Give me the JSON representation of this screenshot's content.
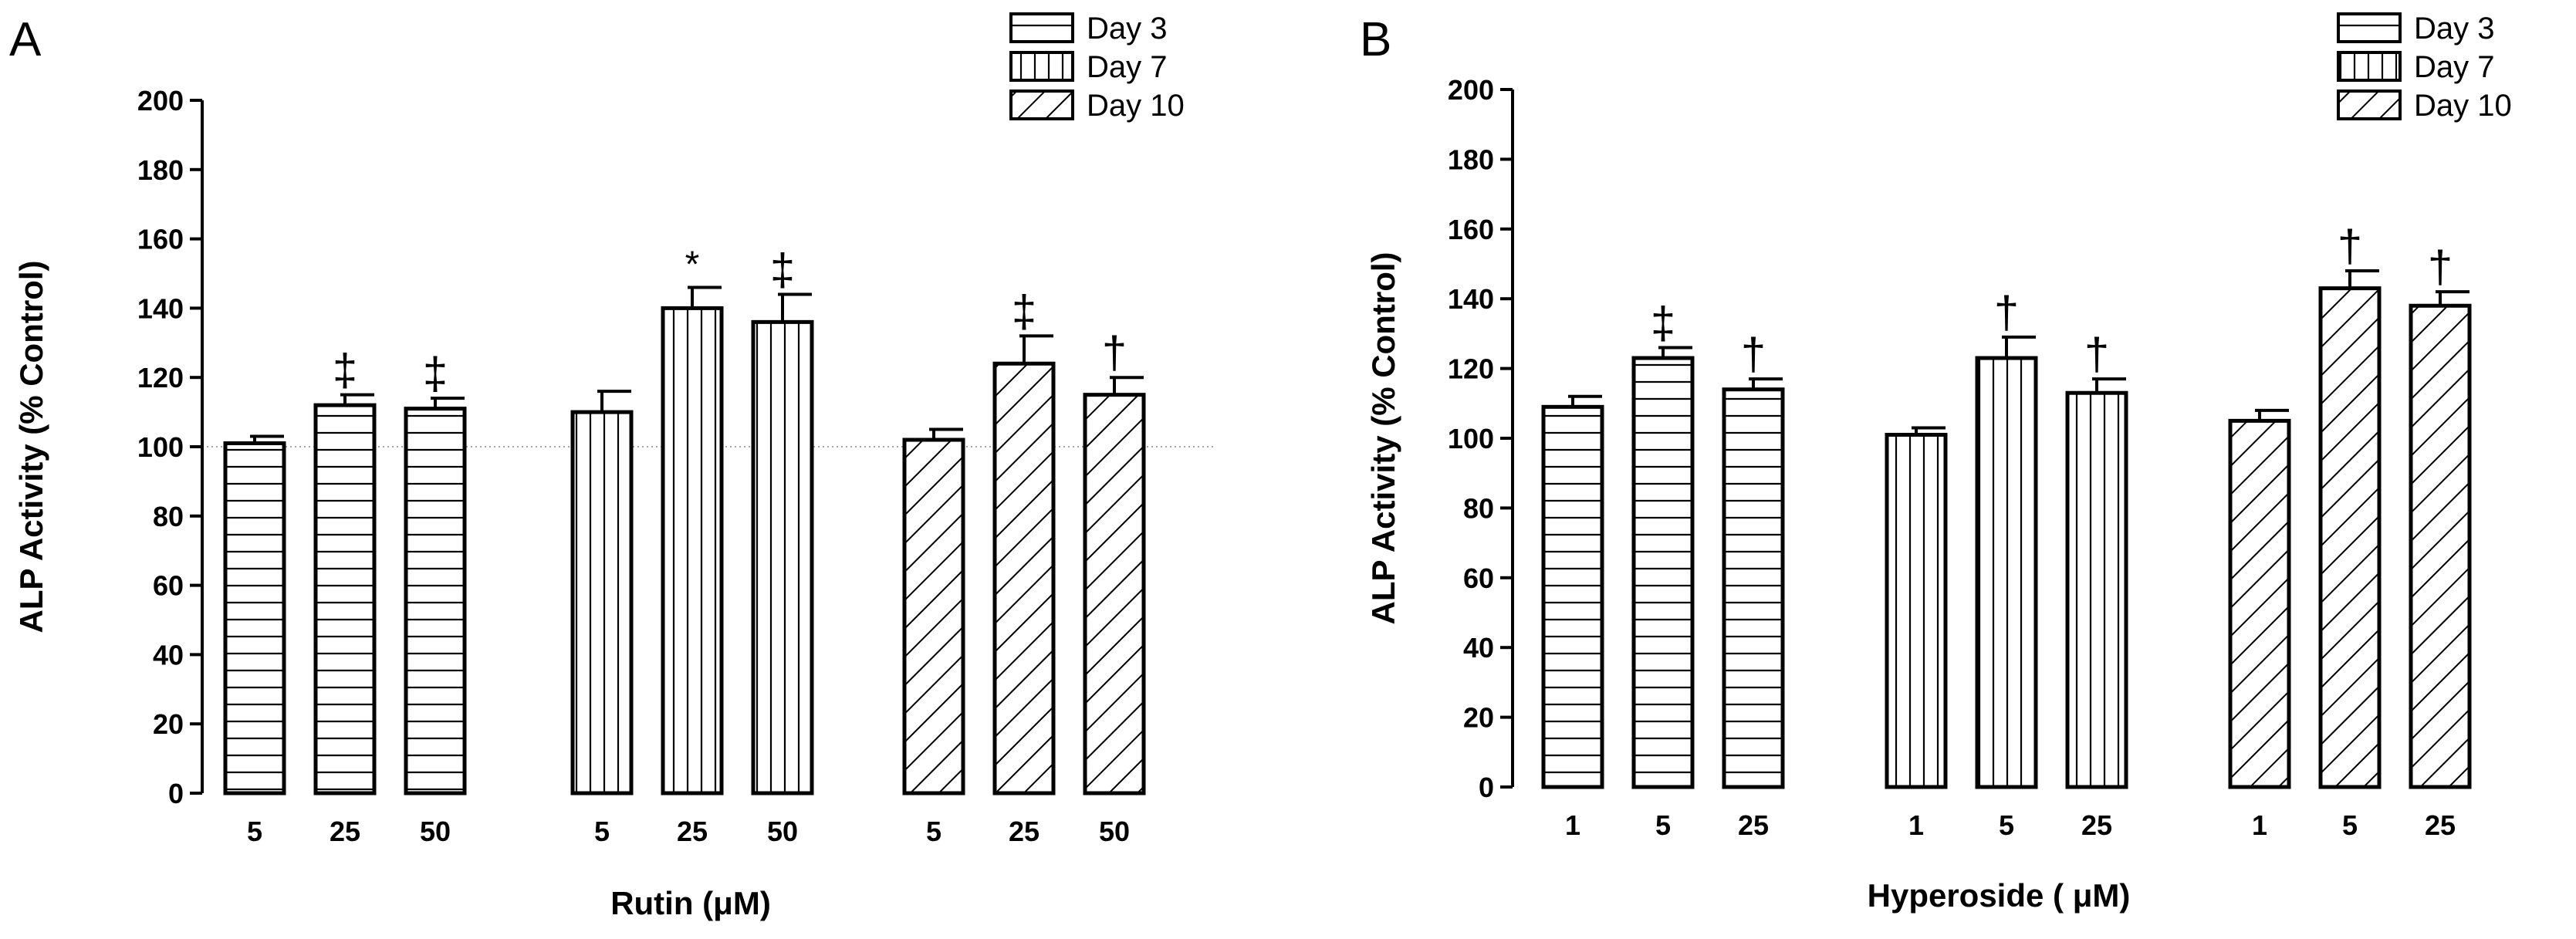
{
  "chart_data": [
    {
      "panel": "A",
      "type": "bar",
      "xlabel": "Rutin (μM)",
      "ylabel": "ALP Activity (% Control)",
      "ylim": [
        0,
        200
      ],
      "yticks": [
        0,
        20,
        40,
        60,
        80,
        100,
        120,
        140,
        160,
        180,
        200
      ],
      "reference_line": 100,
      "legend": [
        "Day 3",
        "Day 7",
        "Day 10"
      ],
      "legend_position": "top-right",
      "groups": [
        {
          "name": "Day 3",
          "pattern": "horizontal",
          "categories": [
            "5",
            "25",
            "50"
          ],
          "values": [
            101,
            112,
            111
          ],
          "errors": [
            2,
            3,
            3
          ],
          "significance": [
            "",
            "‡",
            "‡"
          ]
        },
        {
          "name": "Day 7",
          "pattern": "vertical",
          "categories": [
            "5",
            "25",
            "50"
          ],
          "values": [
            110,
            140,
            136
          ],
          "errors": [
            6,
            6,
            8
          ],
          "significance": [
            "",
            "*",
            "‡"
          ]
        },
        {
          "name": "Day 10",
          "pattern": "diagonal",
          "categories": [
            "5",
            "25",
            "50"
          ],
          "values": [
            102,
            124,
            115
          ],
          "errors": [
            3,
            8,
            5
          ],
          "significance": [
            "",
            "‡",
            "†"
          ]
        }
      ]
    },
    {
      "panel": "B",
      "type": "bar",
      "xlabel": "Hyperoside ( μM)",
      "ylabel": "ALP Activity (% Control)",
      "ylim": [
        0,
        200
      ],
      "yticks": [
        0,
        20,
        40,
        60,
        80,
        100,
        120,
        140,
        160,
        180,
        200
      ],
      "reference_line": null,
      "legend": [
        "Day 3",
        "Day 7",
        "Day 10"
      ],
      "legend_position": "top-right",
      "groups": [
        {
          "name": "Day 3",
          "pattern": "horizontal",
          "categories": [
            "1",
            "5",
            "25"
          ],
          "values": [
            109,
            123,
            114
          ],
          "errors": [
            3,
            3,
            3
          ],
          "significance": [
            "",
            "‡",
            "†"
          ]
        },
        {
          "name": "Day 7",
          "pattern": "vertical",
          "categories": [
            "1",
            "5",
            "25"
          ],
          "values": [
            101,
            123,
            113
          ],
          "errors": [
            2,
            6,
            4
          ],
          "significance": [
            "",
            "†",
            "†"
          ]
        },
        {
          "name": "Day 10",
          "pattern": "diagonal",
          "categories": [
            "1",
            "5",
            "25"
          ],
          "values": [
            105,
            143,
            138
          ],
          "errors": [
            3,
            5,
            4
          ],
          "significance": [
            "",
            "†",
            "†"
          ]
        }
      ]
    }
  ]
}
